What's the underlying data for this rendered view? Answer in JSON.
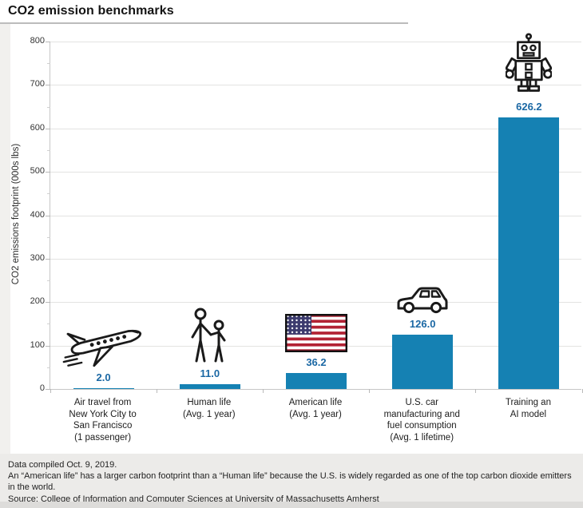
{
  "page": {
    "title": "CO2 emission benchmarks"
  },
  "chart_data": {
    "type": "bar",
    "title": "CO2 emission benchmarks",
    "xlabel": "",
    "ylabel": "CO2 emissions footprint (000s lbs)",
    "ylim": [
      0,
      800
    ],
    "yticks": [
      800,
      700,
      600,
      500,
      400,
      300,
      200,
      100,
      0
    ],
    "grid": true,
    "legend": "none",
    "bar_color": "#1581b3",
    "value_label_color": "#1b68a4",
    "categories": [
      "Air travel from New York City to San Francisco (1 passenger)",
      "Human life (Avg. 1 year)",
      "American life (Avg. 1 year)",
      "U.S. car manufacturing and fuel consumption (Avg. 1 lifetime)",
      "Training an AI model"
    ],
    "values": [
      2.0,
      11.0,
      36.2,
      126.0,
      626.2
    ],
    "points": [
      {
        "category": "Air travel from New York City to San Francisco (1 passenger)",
        "category_lines": [
          "Air travel from",
          "New York City to",
          "San Francisco",
          "(1 passenger)"
        ],
        "value": 2.0,
        "value_label": "2.0",
        "icon": "airplane-icon"
      },
      {
        "category": "Human life (Avg. 1 year)",
        "category_lines": [
          "Human life",
          "(Avg. 1 year)"
        ],
        "value": 11.0,
        "value_label": "11.0",
        "icon": "adult-and-child-icon"
      },
      {
        "category": "American life (Avg. 1 year)",
        "category_lines": [
          "American life",
          "(Avg. 1 year)"
        ],
        "value": 36.2,
        "value_label": "36.2",
        "icon": "us-flag-icon"
      },
      {
        "category": "U.S. car manufacturing and fuel consumption (Avg. 1 lifetime)",
        "category_lines": [
          "U.S. car",
          "manufacturing and",
          "fuel consumption",
          "(Avg. 1 lifetime)"
        ],
        "value": 126.0,
        "value_label": "126.0",
        "icon": "car-icon"
      },
      {
        "category": "Training an AI model",
        "category_lines": [
          "Training an",
          "AI model"
        ],
        "value": 626.2,
        "value_label": "626.2",
        "icon": "robot-icon"
      }
    ]
  },
  "footer": {
    "notes": [
      "Data compiled Oct. 9, 2019.",
      "An “American life” has a larger carbon footprint than a “Human life” because the U.S. is widely regarded as one of the top carbon dioxide emitters in the world.",
      "Source: College of Information and Computer Sciences at University of Massachusetts Amherst"
    ]
  }
}
